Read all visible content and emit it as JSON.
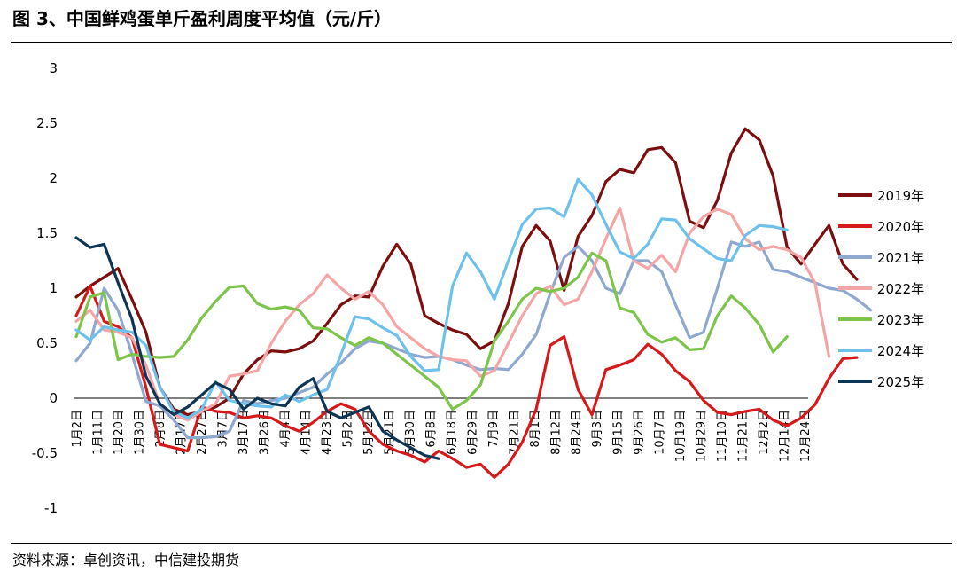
{
  "title": "图 3、中国鲜鸡蛋单斤盈利周度平均值（元/斤）",
  "source": "资料来源：卓创资讯，中信建投期货",
  "chart_data": {
    "type": "line",
    "ylim": [
      -1,
      3
    ],
    "yticks": [
      "3",
      "2.5",
      "2",
      "1.5",
      "1",
      "0.5",
      "0",
      "-0.5",
      "-1"
    ],
    "ytick_values": [
      3,
      2.5,
      2,
      1.5,
      1,
      0.5,
      0,
      -0.5,
      -1
    ],
    "x_tick_labels": [
      "1月2日",
      "1月11日",
      "1月20日",
      "1月30日",
      "2月8日",
      "2月17日",
      "2月27日",
      "3月7日",
      "3月17日",
      "3月26日",
      "4月4日",
      "4月14日",
      "4月23日",
      "5月2日",
      "5月12日",
      "5月21日",
      "5月30日",
      "6月8日",
      "6月18日",
      "6月29日",
      "7月9日",
      "7月21日",
      "8月1日",
      "8月12日",
      "8月24日",
      "9月3日",
      "9月15日",
      "9月26日",
      "10月7日",
      "10月19日",
      "10月29日",
      "11月10日",
      "11月21日",
      "12月2日",
      "12月14日",
      "12月24日"
    ],
    "legend_position": "right",
    "grid": false,
    "series": [
      {
        "name": "2019年",
        "color": "#7B0F0F",
        "values": [
          0.92,
          1.02,
          1.1,
          1.18,
          0.9,
          0.6,
          0.1,
          -0.1,
          -0.15,
          -0.12,
          -0.08,
          0.0,
          0.22,
          0.35,
          0.43,
          0.42,
          0.45,
          0.52,
          0.68,
          0.85,
          0.93,
          0.92,
          1.2,
          1.4,
          1.22,
          0.75,
          0.68,
          0.62,
          0.58,
          0.45,
          0.52,
          0.86,
          1.38,
          1.57,
          1.43,
          0.98,
          1.47,
          1.66,
          1.97,
          2.08,
          2.05,
          2.26,
          2.28,
          2.14,
          1.61,
          1.55,
          1.8,
          2.23,
          2.45,
          2.35,
          2.02,
          1.37,
          1.22,
          1.4,
          1.57,
          1.22,
          1.08
        ]
      },
      {
        "name": "2020年",
        "color": "#D41A1A",
        "values": [
          0.75,
          1.02,
          0.7,
          0.65,
          0.55,
          0.1,
          -0.42,
          -0.45,
          -0.48,
          -0.08,
          -0.12,
          -0.13,
          -0.18,
          -0.16,
          -0.18,
          -0.25,
          -0.3,
          -0.22,
          -0.12,
          -0.05,
          -0.1,
          -0.3,
          -0.42,
          -0.48,
          -0.52,
          -0.58,
          -0.48,
          -0.55,
          -0.63,
          -0.6,
          -0.72,
          -0.6,
          -0.4,
          -0.1,
          0.48,
          0.56,
          0.08,
          -0.15,
          0.26,
          0.3,
          0.35,
          0.49,
          0.4,
          0.25,
          0.15,
          -0.02,
          -0.13,
          -0.15,
          -0.12,
          -0.1,
          -0.2,
          -0.25,
          -0.18,
          -0.06,
          0.18,
          0.36,
          0.37
        ]
      },
      {
        "name": "2021年",
        "color": "#8FA8D0",
        "values": [
          0.34,
          0.5,
          1.0,
          0.8,
          0.4,
          -0.03,
          -0.07,
          -0.2,
          -0.36,
          -0.36,
          -0.35,
          -0.3,
          -0.02,
          -0.05,
          -0.02,
          0.0,
          0.05,
          0.1,
          0.22,
          0.32,
          0.45,
          0.52,
          0.5,
          0.45,
          0.4,
          0.37,
          0.38,
          0.35,
          0.3,
          0.26,
          0.27,
          0.26,
          0.4,
          0.58,
          0.95,
          1.28,
          1.38,
          1.25,
          1.0,
          0.95,
          1.25,
          1.25,
          1.15,
          0.85,
          0.55,
          0.6,
          1.0,
          1.42,
          1.38,
          1.42,
          1.17,
          1.15,
          1.1,
          1.05,
          1.0,
          0.98,
          0.9,
          0.8
        ]
      },
      {
        "name": "2022年",
        "color": "#F4A6A6",
        "values": [
          0.7,
          0.8,
          0.62,
          0.6,
          0.55,
          0.3,
          -0.05,
          -0.15,
          -0.2,
          -0.12,
          -0.05,
          0.2,
          0.22,
          0.25,
          0.5,
          0.7,
          0.85,
          0.95,
          1.12,
          1.0,
          0.9,
          0.97,
          0.85,
          0.65,
          0.55,
          0.45,
          0.38,
          0.35,
          0.34,
          0.2,
          0.25,
          0.5,
          0.75,
          0.95,
          1.02,
          0.85,
          0.9,
          1.15,
          1.45,
          1.73,
          1.25,
          1.18,
          1.3,
          1.15,
          1.5,
          1.65,
          1.72,
          1.67,
          1.45,
          1.35,
          1.38,
          1.35,
          1.28,
          1.05,
          0.38
        ]
      },
      {
        "name": "2023年",
        "color": "#7DC44A",
        "values": [
          0.56,
          0.92,
          0.96,
          0.35,
          0.4,
          0.38,
          0.37,
          0.38,
          0.53,
          0.73,
          0.88,
          1.01,
          1.02,
          0.86,
          0.81,
          0.83,
          0.8,
          0.64,
          0.63,
          0.55,
          0.48,
          0.55,
          0.5,
          0.4,
          0.3,
          0.2,
          0.1,
          -0.1,
          -0.02,
          0.12,
          0.52,
          0.7,
          0.9,
          1.0,
          0.97,
          1.0,
          1.1,
          1.32,
          1.25,
          0.82,
          0.78,
          0.58,
          0.51,
          0.55,
          0.44,
          0.45,
          0.75,
          0.93,
          0.82,
          0.67,
          0.42,
          0.56
        ]
      },
      {
        "name": "2024年",
        "color": "#6EC1EA",
        "values": [
          0.62,
          0.53,
          0.65,
          0.62,
          0.6,
          0.48,
          0.1,
          -0.12,
          -0.18,
          -0.1,
          0.15,
          -0.02,
          -0.05,
          -0.07,
          -0.08,
          0.03,
          -0.03,
          0.03,
          0.08,
          0.4,
          0.74,
          0.72,
          0.64,
          0.57,
          0.38,
          0.25,
          0.26,
          1.02,
          1.32,
          1.15,
          0.9,
          1.25,
          1.58,
          1.72,
          1.73,
          1.65,
          1.99,
          1.85,
          1.58,
          1.33,
          1.27,
          1.4,
          1.63,
          1.62,
          1.45,
          1.36,
          1.27,
          1.25,
          1.48,
          1.57,
          1.56,
          1.53
        ]
      },
      {
        "name": "2025年",
        "color": "#0E3553",
        "values": [
          1.46,
          1.37,
          1.4,
          1.05,
          0.72,
          0.2,
          -0.05,
          -0.15,
          -0.08,
          0.03,
          0.14,
          0.08,
          -0.1,
          0.0,
          -0.05,
          -0.07,
          0.1,
          0.18,
          -0.12,
          -0.18,
          -0.13,
          -0.08,
          -0.3,
          -0.38,
          -0.45,
          -0.52,
          -0.55
        ]
      }
    ]
  }
}
